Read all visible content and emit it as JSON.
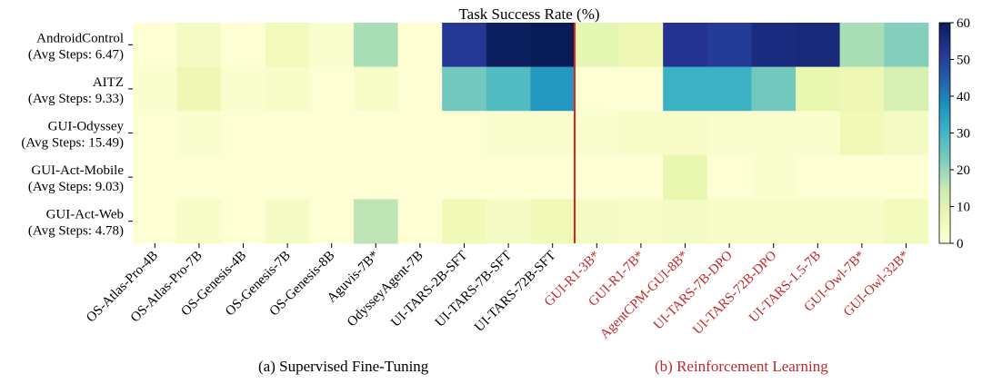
{
  "chart_data": {
    "type": "heatmap",
    "title": "Task Success Rate (%)",
    "rows": [
      {
        "name": "AndroidControl",
        "steps": "(Avg Steps: 6.47)"
      },
      {
        "name": "AITZ",
        "steps": "(Avg Steps: 9.33)"
      },
      {
        "name": "GUI-Odyssey",
        "steps": "(Avg Steps: 15.49)"
      },
      {
        "name": "GUI-Act-Mobile",
        "steps": "(Avg Steps: 9.03)"
      },
      {
        "name": "GUI-Act-Web",
        "steps": "(Avg Steps: 4.78)"
      }
    ],
    "columns": [
      {
        "label": "OS-Atlas-Pro-4B",
        "group": "sft"
      },
      {
        "label": "OS-Atlas-Pro-7B",
        "group": "sft"
      },
      {
        "label": "OS-Genesis-4B",
        "group": "sft"
      },
      {
        "label": "OS-Genesis-7B",
        "group": "sft"
      },
      {
        "label": "OS-Genesis-8B",
        "group": "sft"
      },
      {
        "label": "Aguvis-7B*",
        "group": "sft"
      },
      {
        "label": "OdysseyAgent-7B",
        "group": "sft"
      },
      {
        "label": "UI-TARS-2B-SFT",
        "group": "sft"
      },
      {
        "label": "UI-TARS-7B-SFT",
        "group": "sft"
      },
      {
        "label": "UI-TARS-72B-SFT",
        "group": "sft"
      },
      {
        "label": "GUI-R1-3B*",
        "group": "rl"
      },
      {
        "label": "GUI-R1-7B*",
        "group": "rl"
      },
      {
        "label": "AgentCPM-GUI-8B*",
        "group": "rl"
      },
      {
        "label": "UI-TARS-7B-DPO",
        "group": "rl"
      },
      {
        "label": "UI-TARS-72B-DPO",
        "group": "rl"
      },
      {
        "label": "UI-TARS-1.5-7B",
        "group": "rl"
      },
      {
        "label": "GUI-Owl-7B*",
        "group": "rl"
      },
      {
        "label": "GUI-Owl-32B*",
        "group": "rl"
      }
    ],
    "values": [
      [
        1,
        4,
        1,
        5,
        2,
        18,
        1,
        52,
        59,
        60,
        9,
        7,
        53,
        51,
        55,
        56,
        18,
        22
      ],
      [
        2,
        7,
        2,
        3,
        1,
        3,
        1,
        24,
        28,
        36,
        1,
        1,
        31,
        31,
        24,
        8,
        7,
        12
      ],
      [
        1,
        2,
        1,
        1,
        1,
        1,
        1,
        1,
        2,
        2,
        2,
        3,
        3,
        2,
        2,
        2,
        6,
        4
      ],
      [
        1,
        1,
        1,
        1,
        1,
        1,
        1,
        1,
        1,
        1,
        1,
        1,
        8,
        1,
        2,
        1,
        1,
        1
      ],
      [
        1,
        3,
        1,
        4,
        1,
        16,
        1,
        6,
        4,
        6,
        4,
        3,
        4,
        3,
        3,
        3,
        3,
        5
      ]
    ],
    "colorbar": {
      "min": 0,
      "max": 60,
      "ticks": [
        0,
        10,
        20,
        30,
        40,
        50,
        60
      ]
    },
    "separator_after_column": "UI-TARS-72B-SFT",
    "group_labels": {
      "sft": "(a) Supervised Fine-Tuning",
      "rl": "(b) Reinforcement Learning"
    },
    "colors": {
      "rl_label": "#c0282a",
      "separator": "#e0251d",
      "text": "#000000"
    }
  }
}
